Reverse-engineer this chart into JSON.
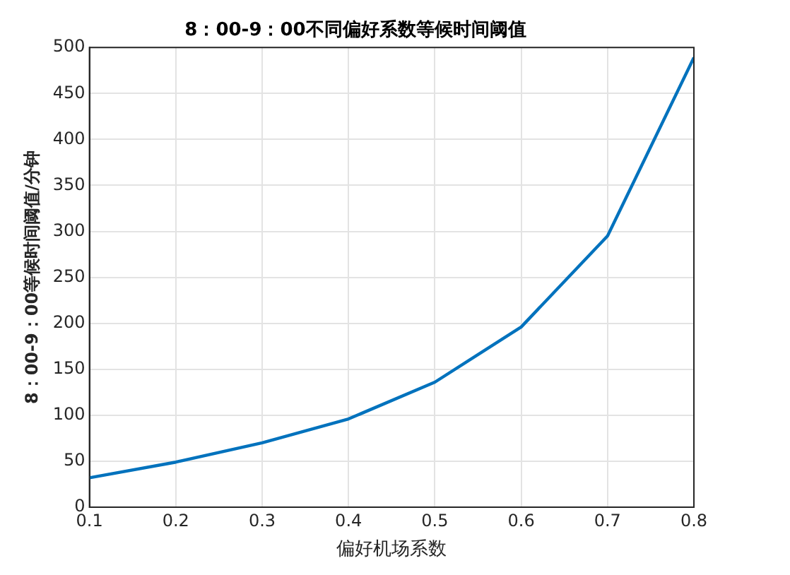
{
  "chart_data": {
    "type": "line",
    "title": "8：00-9：00不同偏好系数等候时间阈值",
    "xlabel": "偏好机场系数",
    "ylabel": "8：00-9：00等候时间阈值/分钟",
    "x": [
      0.1,
      0.2,
      0.3,
      0.4,
      0.5,
      0.6,
      0.7,
      0.8
    ],
    "series": [
      {
        "color": "#0072bd",
        "values": [
          32,
          49,
          70,
          96,
          136,
          196,
          295,
          489
        ]
      }
    ],
    "xlim": [
      0.1,
      0.8
    ],
    "xticks": [
      0.1,
      0.2,
      0.3,
      0.4,
      0.5,
      0.6,
      0.7,
      0.8
    ],
    "ylim": [
      0,
      500
    ],
    "yticks": [
      0,
      50,
      100,
      150,
      200,
      250,
      300,
      350,
      400,
      450,
      500
    ],
    "grid": true,
    "legend": false,
    "marker": "none",
    "line_style": "solid"
  }
}
